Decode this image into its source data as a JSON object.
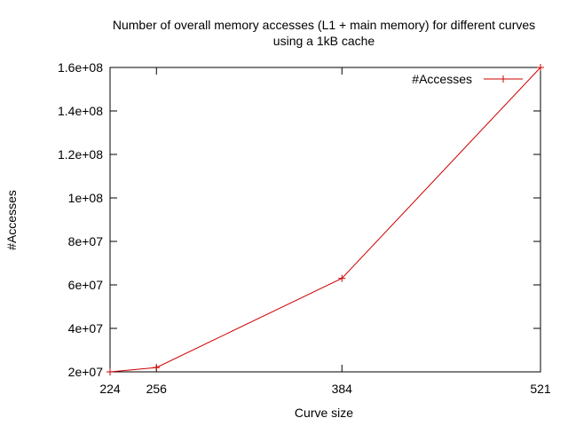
{
  "chart_data": {
    "type": "line",
    "title_line1": "Number of overall memory accesses (L1 + main memory) for different curves",
    "title_line2": "using a 1kB cache",
    "xlabel": "Curve size",
    "ylabel": "#Accesses",
    "x_ticks": [
      224,
      256,
      384,
      521
    ],
    "y_ticks": [
      {
        "value": 20000000,
        "label": "2e+07"
      },
      {
        "value": 40000000,
        "label": "4e+07"
      },
      {
        "value": 60000000,
        "label": "6e+07"
      },
      {
        "value": 80000000,
        "label": "8e+07"
      },
      {
        "value": 100000000,
        "label": "1e+08"
      },
      {
        "value": 120000000,
        "label": "1.2e+08"
      },
      {
        "value": 140000000,
        "label": "1.4e+08"
      },
      {
        "value": 160000000,
        "label": "1.6e+08"
      }
    ],
    "xlim": [
      224,
      521
    ],
    "ylim": [
      20000000,
      160000000
    ],
    "grid": false,
    "legend_position": "top-right",
    "series": [
      {
        "name": "#Accesses",
        "color": "#cc0000",
        "x": [
          224,
          256,
          384,
          521
        ],
        "y": [
          20000000,
          22000000,
          63000000,
          160000000
        ]
      }
    ]
  }
}
